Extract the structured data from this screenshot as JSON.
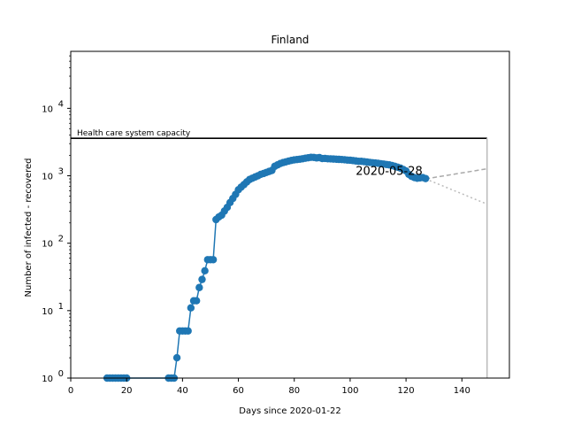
{
  "chart_data": {
    "type": "line",
    "title": "Finland",
    "xlabel": "Days since 2020-01-22",
    "ylabel": "Number of infected - recovered",
    "xlim": [
      0,
      157
    ],
    "ylim": [
      1,
      70000
    ],
    "yscale": "log",
    "x_ticks": [
      0,
      20,
      40,
      60,
      80,
      100,
      120,
      140
    ],
    "y_ticks": [
      {
        "value": 1,
        "base": "10",
        "exp": "0"
      },
      {
        "value": 10,
        "base": "10",
        "exp": "1"
      },
      {
        "value": 100,
        "base": "10",
        "exp": "2"
      },
      {
        "value": 1000,
        "base": "10",
        "exp": "3"
      },
      {
        "value": 10000,
        "base": "10",
        "exp": "4"
      }
    ],
    "grid": false,
    "series": [
      {
        "color": "#1f77b4",
        "x": [
          13,
          14,
          15,
          16,
          17,
          18,
          19,
          20,
          35,
          36,
          37,
          38,
          39,
          40,
          41,
          42,
          43,
          44,
          45,
          46,
          47,
          48,
          49,
          50,
          51,
          52,
          53,
          54,
          55,
          56,
          57,
          58,
          59,
          60,
          61,
          62,
          63,
          64,
          65,
          66,
          67,
          68,
          69,
          70,
          71,
          72,
          73,
          74,
          75,
          76,
          77,
          78,
          79,
          80,
          81,
          82,
          83,
          84,
          85,
          86,
          87,
          88,
          89,
          90,
          91,
          92,
          93,
          94,
          95,
          96,
          97,
          98,
          99,
          100,
          101,
          102,
          103,
          104,
          105,
          106,
          107,
          108,
          109,
          110,
          111,
          112,
          113,
          114,
          115,
          116,
          117,
          118,
          119,
          120,
          121,
          122,
          123,
          124,
          125,
          126,
          127
        ],
        "y": [
          1,
          1,
          1,
          1,
          1,
          1,
          1,
          1,
          1,
          1,
          1,
          2,
          5,
          5,
          5,
          5,
          11,
          14,
          14,
          22,
          29,
          39,
          57,
          57,
          57,
          224,
          245,
          260,
          300,
          340,
          400,
          460,
          530,
          620,
          680,
          740,
          810,
          880,
          920,
          960,
          1000,
          1050,
          1080,
          1120,
          1160,
          1200,
          1380,
          1450,
          1520,
          1570,
          1610,
          1650,
          1690,
          1720,
          1740,
          1760,
          1790,
          1820,
          1850,
          1880,
          1870,
          1840,
          1860,
          1800,
          1810,
          1790,
          1780,
          1770,
          1760,
          1750,
          1740,
          1730,
          1710,
          1700,
          1680,
          1660,
          1640,
          1640,
          1620,
          1600,
          1580,
          1560,
          1550,
          1530,
          1510,
          1490,
          1470,
          1450,
          1420,
          1380,
          1340,
          1300,
          1240,
          1180,
          1050,
          980,
          940,
          920,
          930,
          940,
          910
        ]
      }
    ],
    "projection_upper": {
      "x": [
        127,
        149
      ],
      "y": [
        900,
        1270
      ]
    },
    "projection_lower": {
      "x": [
        127,
        149
      ],
      "y": [
        900,
        380
      ]
    },
    "capacity": {
      "value": 3600,
      "x_end": 149,
      "label": "Health care system capacity"
    },
    "date_annotation": {
      "text": "2020-05-28",
      "x": 102,
      "y": 1000
    },
    "vertical_marker_x": 149
  }
}
